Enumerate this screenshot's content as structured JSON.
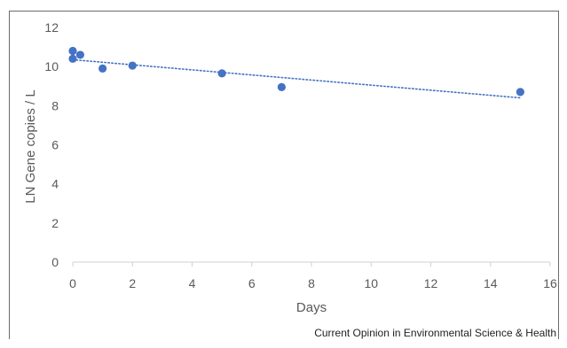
{
  "chart_data": {
    "type": "scatter",
    "title": "",
    "xlabel": "Days",
    "ylabel": "LN Gene copies / L",
    "xlim": [
      0,
      16
    ],
    "ylim": [
      0,
      12
    ],
    "xticks": [
      0,
      2,
      4,
      6,
      8,
      10,
      12,
      14,
      16
    ],
    "yticks": [
      0,
      2,
      4,
      6,
      8,
      10,
      12
    ],
    "grid": false,
    "series": [
      {
        "color": "#4472C4",
        "points": [
          {
            "x": 0,
            "y": 10.8
          },
          {
            "x": 0,
            "y": 10.4
          },
          {
            "x": 0.25,
            "y": 10.6
          },
          {
            "x": 1,
            "y": 9.9
          },
          {
            "x": 2,
            "y": 10.05
          },
          {
            "x": 5,
            "y": 9.65
          },
          {
            "x": 7,
            "y": 8.95
          },
          {
            "x": 15,
            "y": 8.7
          }
        ]
      }
    ],
    "trendline": {
      "type": "linear",
      "style": "dotted",
      "color": "#4472C4",
      "x": [
        0,
        15
      ],
      "y": [
        10.35,
        8.4
      ]
    }
  },
  "source_text": "Current Opinion in Environmental Science & Health"
}
